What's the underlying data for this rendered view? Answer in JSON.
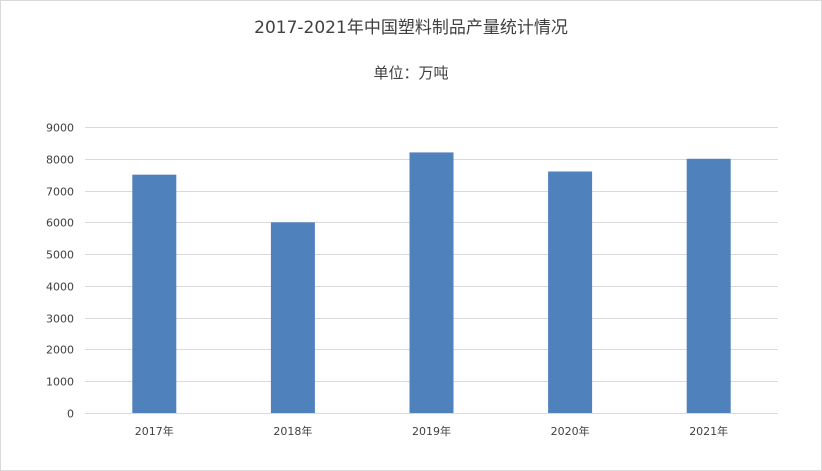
{
  "chart_data": {
    "type": "bar",
    "title": "2017-2021年中国塑料制品产量统计情况",
    "subtitle": "单位：万吨",
    "categories": [
      "2017年",
      "2018年",
      "2019年",
      "2020年",
      "2021年"
    ],
    "values": [
      7500,
      6000,
      8200,
      7600,
      8000
    ],
    "ylim": [
      0,
      9000
    ],
    "yticks": [
      "0",
      "1000",
      "2000",
      "3000",
      "4000",
      "5000",
      "6000",
      "7000",
      "8000",
      "9000"
    ],
    "grid": true,
    "legend": "none",
    "bar_color": "#4f81bd",
    "grid_color": "#d9d9d9"
  }
}
